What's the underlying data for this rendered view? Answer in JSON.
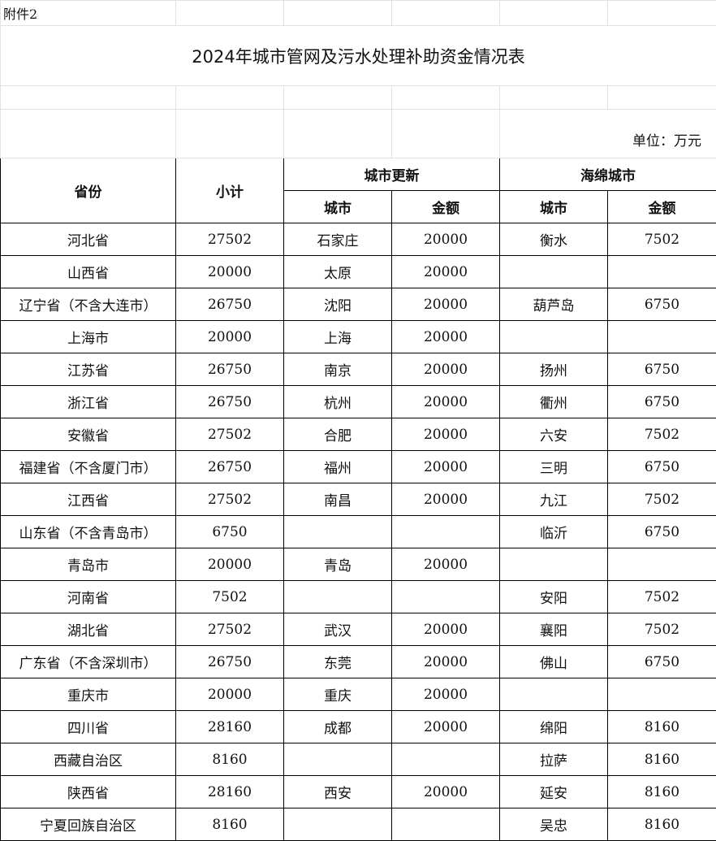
{
  "annex_label": "附件2",
  "title": "2024年城市管网及污水处理补助资金情况表",
  "unit": "单位：万元",
  "headers": {
    "province": "省份",
    "subtotal": "小计",
    "urban_renewal": "城市更新",
    "sponge_city": "海绵城市",
    "city": "城市",
    "amount": "金额"
  },
  "rows": [
    {
      "province": "河北省",
      "subtotal": "27502",
      "ur_city": "石家庄",
      "ur_amount": "20000",
      "sc_city": "衡水",
      "sc_amount": "7502"
    },
    {
      "province": "山西省",
      "subtotal": "20000",
      "ur_city": "太原",
      "ur_amount": "20000",
      "sc_city": "",
      "sc_amount": ""
    },
    {
      "province": "辽宁省（不含大连市）",
      "subtotal": "26750",
      "ur_city": "沈阳",
      "ur_amount": "20000",
      "sc_city": "葫芦岛",
      "sc_amount": "6750"
    },
    {
      "province": "上海市",
      "subtotal": "20000",
      "ur_city": "上海",
      "ur_amount": "20000",
      "sc_city": "",
      "sc_amount": ""
    },
    {
      "province": "江苏省",
      "subtotal": "26750",
      "ur_city": "南京",
      "ur_amount": "20000",
      "sc_city": "扬州",
      "sc_amount": "6750"
    },
    {
      "province": "浙江省",
      "subtotal": "26750",
      "ur_city": "杭州",
      "ur_amount": "20000",
      "sc_city": "衢州",
      "sc_amount": "6750"
    },
    {
      "province": "安徽省",
      "subtotal": "27502",
      "ur_city": "合肥",
      "ur_amount": "20000",
      "sc_city": "六安",
      "sc_amount": "7502"
    },
    {
      "province": "福建省（不含厦门市）",
      "subtotal": "26750",
      "ur_city": "福州",
      "ur_amount": "20000",
      "sc_city": "三明",
      "sc_amount": "6750"
    },
    {
      "province": "江西省",
      "subtotal": "27502",
      "ur_city": "南昌",
      "ur_amount": "20000",
      "sc_city": "九江",
      "sc_amount": "7502"
    },
    {
      "province": "山东省（不含青岛市）",
      "subtotal": "6750",
      "ur_city": "",
      "ur_amount": "",
      "sc_city": "临沂",
      "sc_amount": "6750"
    },
    {
      "province": "青岛市",
      "subtotal": "20000",
      "ur_city": "青岛",
      "ur_amount": "20000",
      "sc_city": "",
      "sc_amount": ""
    },
    {
      "province": "河南省",
      "subtotal": "7502",
      "ur_city": "",
      "ur_amount": "",
      "sc_city": "安阳",
      "sc_amount": "7502"
    },
    {
      "province": "湖北省",
      "subtotal": "27502",
      "ur_city": "武汉",
      "ur_amount": "20000",
      "sc_city": "襄阳",
      "sc_amount": "7502"
    },
    {
      "province": "广东省（不含深圳市）",
      "subtotal": "26750",
      "ur_city": "东莞",
      "ur_amount": "20000",
      "sc_city": "佛山",
      "sc_amount": "6750"
    },
    {
      "province": "重庆市",
      "subtotal": "20000",
      "ur_city": "重庆",
      "ur_amount": "20000",
      "sc_city": "",
      "sc_amount": ""
    },
    {
      "province": "四川省",
      "subtotal": "28160",
      "ur_city": "成都",
      "ur_amount": "20000",
      "sc_city": "绵阳",
      "sc_amount": "8160"
    },
    {
      "province": "西藏自治区",
      "subtotal": "8160",
      "ur_city": "",
      "ur_amount": "",
      "sc_city": "拉萨",
      "sc_amount": "8160"
    },
    {
      "province": "陕西省",
      "subtotal": "28160",
      "ur_city": "西安",
      "ur_amount": "20000",
      "sc_city": "延安",
      "sc_amount": "8160"
    },
    {
      "province": "宁夏回族自治区",
      "subtotal": "8160",
      "ur_city": "",
      "ur_amount": "",
      "sc_city": "吴忠",
      "sc_amount": "8160"
    }
  ]
}
